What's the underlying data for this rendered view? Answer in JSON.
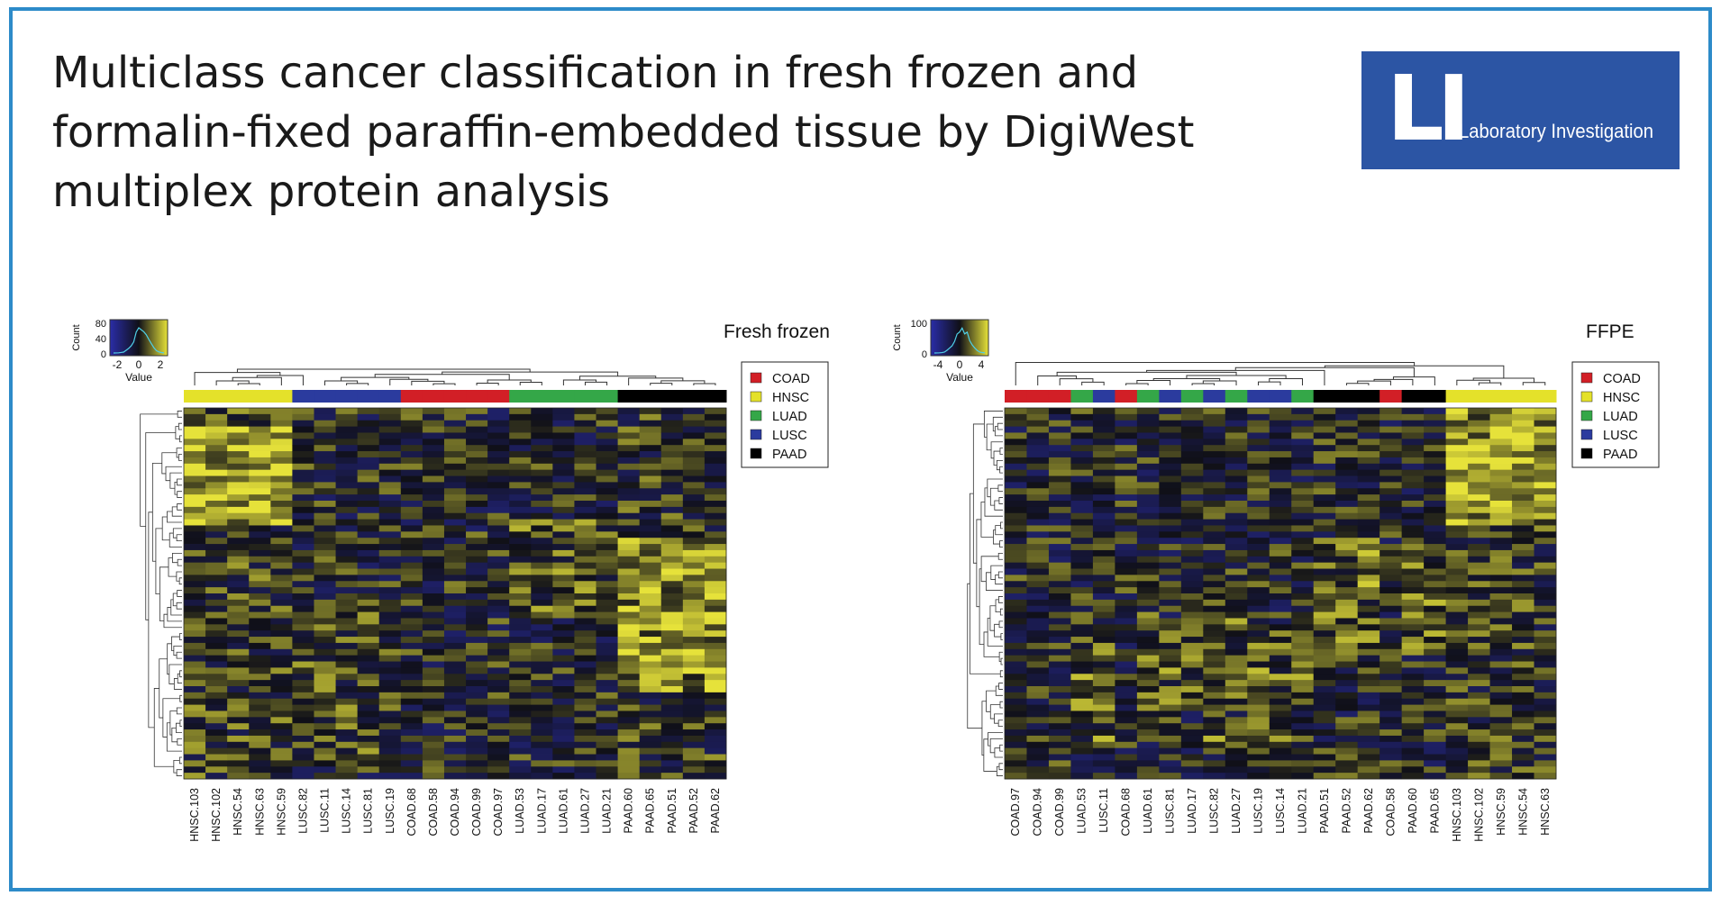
{
  "title_lines": [
    "Multiclass cancer classification in fresh frozen and",
    "formalin-fixed paraffin-embedded tissue by DigiWest",
    "multiplex protein analysis"
  ],
  "logo": {
    "monogram": "LI",
    "name": "Laboratory Investigation"
  },
  "colors": {
    "frame": "#2d8bc9",
    "logo_bg": "#2c55a4",
    "COAD": "#d21f26",
    "HNSC": "#e4e12a",
    "LUAD": "#34a748",
    "LUSC": "#2b3b9e",
    "PAAD": "#000000",
    "heat_low": "#2a2da8",
    "heat_mid": "#101018",
    "heat_high": "#e6e23a"
  },
  "chart_data": [
    {
      "type": "heatmap",
      "title": "Fresh frozen",
      "legend": [
        "COAD",
        "HNSC",
        "LUAD",
        "LUSC",
        "PAAD"
      ],
      "color_key": {
        "xlabel": "Value",
        "ylabel": "Count",
        "xticks": [
          "-2",
          "0",
          "2"
        ],
        "yticks": [
          "80",
          "40",
          "0"
        ]
      },
      "columns": [
        "HNSC.103",
        "HNSC.102",
        "HNSC.54",
        "HNSC.63",
        "HNSC.59",
        "LUSC.82",
        "LUSC.11",
        "LUSC.14",
        "LUSC.81",
        "LUSC.19",
        "COAD.68",
        "COAD.58",
        "COAD.94",
        "COAD.99",
        "COAD.97",
        "LUAD.53",
        "LUAD.17",
        "LUAD.61",
        "LUAD.27",
        "LUAD.21",
        "PAAD.60",
        "PAAD.65",
        "PAAD.51",
        "PAAD.52",
        "PAAD.62"
      ],
      "column_classes": [
        "HNSC",
        "HNSC",
        "HNSC",
        "HNSC",
        "HNSC",
        "LUSC",
        "LUSC",
        "LUSC",
        "LUSC",
        "LUSC",
        "COAD",
        "COAD",
        "COAD",
        "COAD",
        "COAD",
        "LUAD",
        "LUAD",
        "LUAD",
        "LUAD",
        "LUAD",
        "PAAD",
        "PAAD",
        "PAAD",
        "PAAD",
        "PAAD"
      ]
    },
    {
      "type": "heatmap",
      "title": "FFPE",
      "legend": [
        "COAD",
        "HNSC",
        "LUAD",
        "LUSC",
        "PAAD"
      ],
      "color_key": {
        "xlabel": "Value",
        "ylabel": "Count",
        "xticks": [
          "-4",
          "0",
          "4"
        ],
        "yticks": [
          "100",
          "0"
        ]
      },
      "columns": [
        "COAD.97",
        "COAD.94",
        "COAD.99",
        "LUAD.53",
        "LUSC.11",
        "COAD.68",
        "LUAD.61",
        "LUSC.81",
        "LUAD.17",
        "LUSC.82",
        "LUAD.27",
        "LUSC.19",
        "LUSC.14",
        "LUAD.21",
        "PAAD.51",
        "PAAD.52",
        "PAAD.62",
        "COAD.58",
        "PAAD.60",
        "PAAD.65",
        "HNSC.103",
        "HNSC.102",
        "HNSC.59",
        "HNSC.54",
        "HNSC.63"
      ],
      "column_classes": [
        "COAD",
        "COAD",
        "COAD",
        "LUAD",
        "LUSC",
        "COAD",
        "LUAD",
        "LUSC",
        "LUAD",
        "LUSC",
        "LUAD",
        "LUSC",
        "LUSC",
        "LUAD",
        "PAAD",
        "PAAD",
        "PAAD",
        "COAD",
        "PAAD",
        "PAAD",
        "HNSC",
        "HNSC",
        "HNSC",
        "HNSC",
        "HNSC"
      ]
    }
  ]
}
